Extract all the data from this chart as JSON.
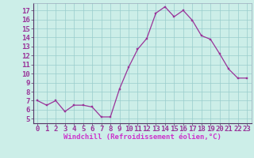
{
  "x": [
    0,
    1,
    2,
    3,
    4,
    5,
    6,
    7,
    8,
    9,
    10,
    11,
    12,
    13,
    14,
    15,
    16,
    17,
    18,
    19,
    20,
    21,
    22,
    23
  ],
  "y": [
    7.0,
    6.5,
    7.0,
    5.8,
    6.5,
    6.5,
    6.3,
    5.2,
    5.2,
    8.3,
    10.7,
    12.7,
    13.9,
    16.7,
    17.4,
    16.3,
    17.0,
    15.9,
    14.2,
    13.8,
    12.2,
    10.5,
    9.5,
    9.5
  ],
  "line_color": "#993399",
  "marker_color": "#993399",
  "bg_color": "#cceee8",
  "grid_color": "#99cccc",
  "xlabel": "Windchill (Refroidissement éolien,°C)",
  "xlabel_color": "#cc33cc",
  "ylabel_ticks": [
    5,
    6,
    7,
    8,
    9,
    10,
    11,
    12,
    13,
    14,
    15,
    16,
    17
  ],
  "xlim": [
    -0.5,
    23.5
  ],
  "ylim": [
    4.5,
    17.8
  ],
  "tick_color": "#993399",
  "tick_fontsize": 6.5,
  "xlabel_fontsize": 6.5
}
